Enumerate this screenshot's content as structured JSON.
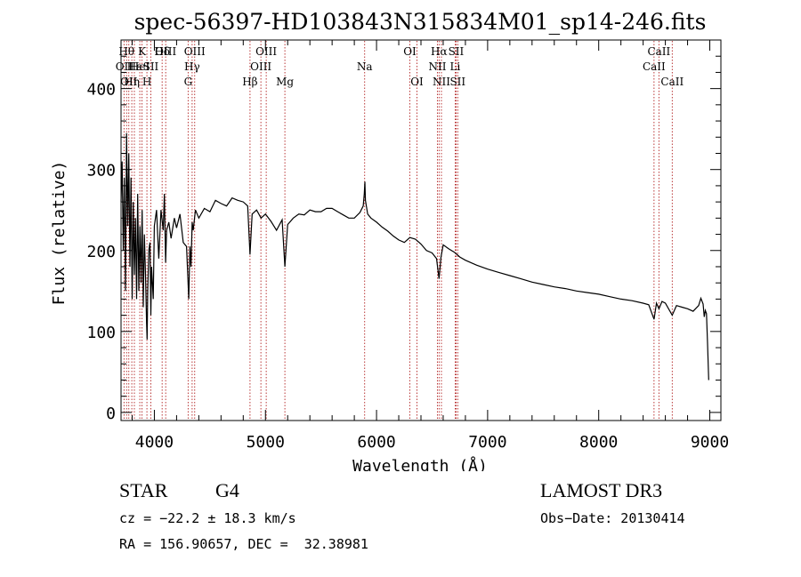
{
  "chart_data": {
    "type": "line",
    "title": "spec-56397-HD103843N315834M01_sp14-246.fits",
    "xlabel": "Wavelength (Å)",
    "ylabel": "Flux (relative)",
    "xlim": [
      3700,
      9100
    ],
    "ylim": [
      -10,
      460
    ],
    "xticks": [
      4000,
      5000,
      6000,
      7000,
      8000,
      9000
    ],
    "yticks": [
      0,
      100,
      200,
      300,
      400
    ],
    "xtick_labels": [
      "4000",
      "5000",
      "6000",
      "7000",
      "8000",
      "9000"
    ],
    "ytick_labels": [
      "0",
      "100",
      "200",
      "300",
      "400"
    ],
    "series": [
      {
        "name": "spectrum",
        "x": [
          3700,
          3710,
          3720,
          3730,
          3740,
          3750,
          3760,
          3770,
          3780,
          3790,
          3800,
          3810,
          3820,
          3830,
          3840,
          3850,
          3860,
          3870,
          3880,
          3890,
          3900,
          3910,
          3920,
          3930,
          3935,
          3940,
          3950,
          3960,
          3968,
          3975,
          3990,
          4000,
          4020,
          4040,
          4060,
          4080,
          4090,
          4101,
          4110,
          4130,
          4150,
          4180,
          4200,
          4230,
          4260,
          4290,
          4310,
          4320,
          4330,
          4340,
          4350,
          4370,
          4400,
          4450,
          4500,
          4550,
          4600,
          4650,
          4700,
          4750,
          4800,
          4840,
          4861,
          4880,
          4920,
          4960,
          5000,
          5050,
          5100,
          5150,
          5175,
          5200,
          5250,
          5300,
          5350,
          5400,
          5450,
          5500,
          5550,
          5600,
          5650,
          5700,
          5750,
          5800,
          5850,
          5880,
          5890,
          5895,
          5900,
          5920,
          5950,
          6000,
          6050,
          6100,
          6150,
          6200,
          6250,
          6300,
          6350,
          6400,
          6450,
          6500,
          6540,
          6563,
          6580,
          6600,
          6650,
          6700,
          6750,
          6800,
          6900,
          7000,
          7100,
          7200,
          7300,
          7400,
          7500,
          7600,
          7700,
          7800,
          7900,
          8000,
          8100,
          8200,
          8300,
          8400,
          8450,
          8498,
          8520,
          8542,
          8570,
          8600,
          8662,
          8700,
          8750,
          8800,
          8850,
          8900,
          8920,
          8940,
          8950,
          8960,
          8970,
          8980,
          8990
        ],
        "values": [
          260,
          310,
          200,
          290,
          150,
          345,
          230,
          320,
          180,
          290,
          140,
          260,
          170,
          240,
          140,
          270,
          150,
          230,
          160,
          250,
          130,
          220,
          170,
          110,
          90,
          150,
          200,
          210,
          120,
          180,
          140,
          230,
          250,
          190,
          250,
          225,
          270,
          185,
          225,
          235,
          215,
          240,
          228,
          245,
          210,
          205,
          140,
          205,
          180,
          235,
          225,
          250,
          240,
          252,
          248,
          262,
          258,
          255,
          265,
          262,
          260,
          255,
          195,
          245,
          250,
          240,
          245,
          236,
          225,
          238,
          180,
          232,
          240,
          245,
          244,
          250,
          248,
          248,
          252,
          252,
          248,
          244,
          240,
          240,
          247,
          255,
          270,
          285,
          262,
          245,
          240,
          235,
          229,
          224,
          218,
          213,
          210,
          216,
          214,
          208,
          200,
          197,
          190,
          165,
          192,
          207,
          202,
          198,
          192,
          188,
          182,
          177,
          173,
          169,
          165,
          161,
          158,
          155,
          153,
          150,
          148,
          146,
          143,
          140,
          138,
          135,
          133,
          115,
          135,
          128,
          137,
          135,
          120,
          132,
          130,
          128,
          125,
          132,
          141,
          134,
          118,
          126,
          122,
          85,
          40
        ]
      }
    ],
    "lines": [
      {
        "wl": 3727,
        "label": "OII",
        "row": 2
      },
      {
        "wl": 3750,
        "label": "Hθ",
        "row": 1
      },
      {
        "wl": 3770,
        "label": "OII",
        "row": 3
      },
      {
        "wl": 3797,
        "label": "Hη",
        "row": 3
      },
      {
        "wl": 3820,
        "label": "Hε",
        "row": 2
      },
      {
        "wl": 3869,
        "label": "HeI",
        "row": 2
      },
      {
        "wl": 3889,
        "label": "K",
        "row": 1
      },
      {
        "wl": 3933,
        "label": "H",
        "row": 3
      },
      {
        "wl": 3968,
        "label": "SII",
        "row": 2
      },
      {
        "wl": 4070,
        "label": "Hδ",
        "row": 1
      },
      {
        "wl": 4102,
        "label": "OIII",
        "row": 1
      },
      {
        "wl": 4304,
        "label": "G",
        "row": 3
      },
      {
        "wl": 4340,
        "label": "Hγ",
        "row": 2
      },
      {
        "wl": 4363,
        "label": "OIII",
        "row": 1
      },
      {
        "wl": 4861,
        "label": "Hβ",
        "row": 3
      },
      {
        "wl": 4959,
        "label": "OIII",
        "row": 2
      },
      {
        "wl": 5007,
        "label": "OIII",
        "row": 1
      },
      {
        "wl": 5175,
        "label": "Mg",
        "row": 3
      },
      {
        "wl": 5893,
        "label": "Na",
        "row": 2
      },
      {
        "wl": 6300,
        "label": "OI",
        "row": 1
      },
      {
        "wl": 6364,
        "label": "OI",
        "row": 3
      },
      {
        "wl": 6548,
        "label": "NII",
        "row": 2
      },
      {
        "wl": 6563,
        "label": "Hα",
        "row": 1
      },
      {
        "wl": 6584,
        "label": "NII",
        "row": 3
      },
      {
        "wl": 6708,
        "label": "Li",
        "row": 2
      },
      {
        "wl": 6716,
        "label": "SII",
        "row": 1
      },
      {
        "wl": 6731,
        "label": "SII",
        "row": 3
      },
      {
        "wl": 8498,
        "label": "CaII",
        "row": 2
      },
      {
        "wl": 8542,
        "label": "CaII",
        "row": 1
      },
      {
        "wl": 8662,
        "label": "CaII",
        "row": 3
      }
    ]
  },
  "info": {
    "object_class": "STAR",
    "subclass": "G4",
    "survey": "LAMOST DR3",
    "cz": "cz = −22.2 ± 18.3 km/s",
    "obs_date": "Obs−Date: 20130414",
    "coords": "RA = 156.90657, DEC =  32.38981"
  },
  "colors": {
    "line_marker": "#b22222",
    "spectrum": "#000000"
  }
}
